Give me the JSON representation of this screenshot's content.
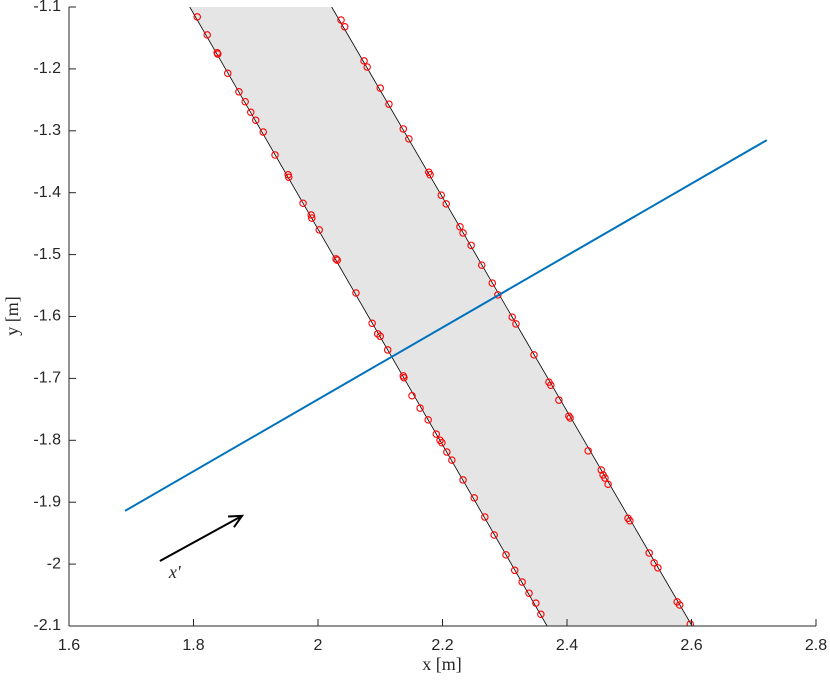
{
  "chart_data": {
    "type": "line",
    "xlabel": "x [m]",
    "ylabel": "y [m]",
    "xlim": [
      1.6,
      2.8
    ],
    "ylim": [
      -2.1,
      -1.1
    ],
    "xticks": [
      1.6,
      1.8,
      2,
      2.2,
      2.4,
      2.6,
      2.8
    ],
    "yticks": [
      -2.1,
      -2,
      -1.9,
      -1.8,
      -1.7,
      -1.6,
      -1.5,
      -1.4,
      -1.3,
      -1.2,
      -1.1
    ],
    "series": [
      {
        "type": "band",
        "color": "#e5e5e5",
        "line_color": "#000000",
        "x": [
          1.794,
          2.368,
          2.601,
          2.022
        ],
        "y": [
          -1.1,
          -2.1,
          -2.1,
          -1.1
        ]
      },
      {
        "type": "scatter",
        "color": "#ff0000",
        "x": [
          1.806,
          1.822,
          1.838,
          1.839,
          1.855,
          1.873,
          1.883,
          1.892,
          1.9,
          1.912,
          1.931,
          1.952,
          1.953,
          1.976,
          1.989,
          1.99,
          2.002,
          2.029,
          2.031,
          2.061,
          2.087,
          2.096,
          2.1,
          2.112,
          2.137,
          2.138,
          2.151,
          2.164,
          2.177,
          2.19,
          2.196,
          2.199,
          2.207,
          2.215,
          2.233,
          2.251,
          2.268,
          2.283,
          2.302,
          2.316,
          2.328,
          2.339,
          2.35,
          2.358,
          2.037,
          2.043,
          2.074,
          2.079,
          2.1,
          2.114,
          2.137,
          2.146,
          2.178,
          2.18,
          2.198,
          2.206,
          2.228,
          2.233,
          2.246,
          2.263,
          2.28,
          2.289,
          2.312,
          2.318,
          2.347,
          2.371,
          2.374,
          2.387,
          2.403,
          2.405,
          2.434,
          2.455,
          2.458,
          2.461,
          2.466,
          2.498,
          2.501,
          2.532,
          2.54,
          2.546,
          2.577,
          2.581,
          2.598
        ],
        "y": [
          -1.116,
          -1.145,
          -1.174,
          -1.176,
          -1.207,
          -1.237,
          -1.253,
          -1.27,
          -1.283,
          -1.302,
          -1.339,
          -1.371,
          -1.375,
          -1.417,
          -1.436,
          -1.441,
          -1.46,
          -1.507,
          -1.509,
          -1.562,
          -1.611,
          -1.628,
          -1.632,
          -1.654,
          -1.696,
          -1.699,
          -1.728,
          -1.748,
          -1.767,
          -1.79,
          -1.8,
          -1.804,
          -1.819,
          -1.832,
          -1.864,
          -1.893,
          -1.924,
          -1.953,
          -1.985,
          -2.01,
          -2.029,
          -2.047,
          -2.063,
          -2.081,
          -1.121,
          -1.132,
          -1.187,
          -1.197,
          -1.231,
          -1.257,
          -1.297,
          -1.313,
          -1.367,
          -1.371,
          -1.404,
          -1.418,
          -1.455,
          -1.465,
          -1.485,
          -1.517,
          -1.546,
          -1.565,
          -1.601,
          -1.612,
          -1.662,
          -1.706,
          -1.711,
          -1.735,
          -1.761,
          -1.764,
          -1.817,
          -1.848,
          -1.856,
          -1.861,
          -1.871,
          -1.926,
          -1.93,
          -1.982,
          -1.998,
          -2.006,
          -2.061,
          -2.066,
          -2.097
        ]
      },
      {
        "type": "line",
        "color": "#0072bd",
        "x": [
          1.69,
          2.721
        ],
        "y": [
          -1.914,
          -1.315
        ]
      }
    ],
    "arrow": {
      "x": [
        1.746,
        1.878
      ],
      "y": [
        -1.995,
        -1.922
      ],
      "color": "#000000"
    },
    "annotation": {
      "text": "x′",
      "x": 1.77,
      "y": -2.016
    }
  }
}
